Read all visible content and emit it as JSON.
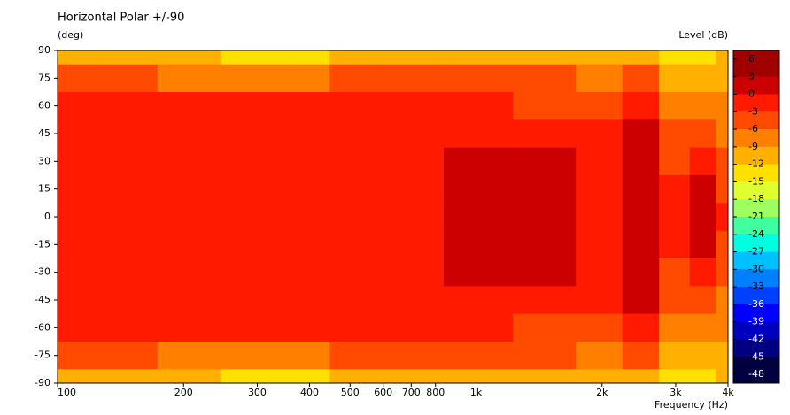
{
  "chart_data": {
    "type": "contour",
    "title": "Horizontal Polar +/-90",
    "y_label": "(deg)",
    "x_label": "Frequency  (Hz)",
    "colorbar_label": "Level  (dB)",
    "x_scale": "log",
    "x": [
      100,
      150,
      200,
      300,
      400,
      500,
      700,
      1000,
      1500,
      2000,
      2500,
      3000,
      3500,
      4000
    ],
    "y": [
      90,
      75,
      60,
      45,
      30,
      15,
      0,
      -15,
      -30,
      -45,
      -60,
      -75,
      -90
    ],
    "z": [
      [
        -11,
        -11,
        -12,
        -13.5,
        -14,
        -12,
        -10,
        -10,
        -11,
        -11,
        -10,
        -14,
        -13,
        -12
      ],
      [
        -6,
        -6,
        -6.5,
        -7,
        -7,
        -6,
        -5,
        -5,
        -6,
        -7,
        -5,
        -12,
        -12,
        -10
      ],
      [
        -2,
        -2,
        -2,
        -2.5,
        -2.5,
        -2,
        -2,
        -3,
        -3.5,
        -4,
        -2,
        -9,
        -8,
        -9
      ],
      [
        -1.5,
        -1.5,
        -1.5,
        -1.5,
        -1.5,
        -1.5,
        -1.5,
        -1,
        -1,
        -2,
        1,
        -6,
        -6,
        -7
      ],
      [
        -1.5,
        -1.5,
        -1.5,
        -1.5,
        -1.5,
        -1.5,
        -1.5,
        1,
        1,
        -1,
        1,
        -4,
        -3,
        -6
      ],
      [
        -1.5,
        -1.5,
        -1.5,
        -1.5,
        -1.5,
        -1.5,
        -1.5,
        1,
        1,
        -1,
        1,
        -2,
        0.5,
        -5
      ],
      [
        -1.5,
        -1.5,
        -1.5,
        -1.5,
        -1.5,
        -1.5,
        -1.5,
        1,
        1,
        -1,
        1,
        -1,
        1,
        -3
      ],
      [
        -1.5,
        -1.5,
        -1.5,
        -1.5,
        -1.5,
        -1.5,
        -1.5,
        1,
        1,
        -1,
        1,
        -2,
        0.5,
        -5
      ],
      [
        -1.5,
        -1.5,
        -1.5,
        -1.5,
        -1.5,
        -1.5,
        -1.5,
        1,
        1,
        -1,
        1,
        -4,
        -3,
        -6
      ],
      [
        -1.5,
        -1.5,
        -1.5,
        -1.5,
        -1.5,
        -1.5,
        -1.5,
        -1,
        -1,
        -2,
        1,
        -6,
        -6,
        -7
      ],
      [
        -2,
        -2,
        -2,
        -2.5,
        -2.5,
        -2,
        -2,
        -3,
        -3.5,
        -4,
        -2,
        -9,
        -8,
        -9
      ],
      [
        -6,
        -6,
        -6.5,
        -7,
        -7,
        -6,
        -5,
        -5,
        -6,
        -7,
        -5,
        -12,
        -12,
        -10
      ],
      [
        -11,
        -11,
        -12,
        -13.5,
        -14,
        -12,
        -10,
        -10,
        -11,
        -11,
        -10,
        -14,
        -13,
        -12
      ]
    ],
    "xlim": [
      100,
      4000
    ],
    "xticks": [
      100,
      200,
      300,
      400,
      500,
      600,
      700,
      800,
      {
        "value": 1000,
        "label": "1k"
      },
      {
        "value": 2000,
        "label": "2k"
      },
      {
        "value": 3000,
        "label": "3k"
      },
      {
        "value": 4000,
        "label": "4k"
      }
    ],
    "ylim": [
      -90,
      90
    ],
    "yticks": [
      90,
      75,
      60,
      45,
      30,
      15,
      0,
      -15,
      -30,
      -45,
      -60,
      -75,
      -90
    ],
    "clim": [
      -49.5,
      7.5
    ],
    "cticks": [
      6,
      3,
      0,
      -3,
      -6,
      -9,
      -12,
      -15,
      -18,
      -21,
      -24,
      -27,
      -30,
      -33,
      -36,
      -39,
      -42,
      -45,
      -48
    ],
    "band_colors": [
      "#a00000",
      "#cc0000",
      "#ff1a00",
      "#ff4a00",
      "#ff8000",
      "#ffb000",
      "#ffe000",
      "#e0ff30",
      "#a0ff60",
      "#40ffa0",
      "#00ffe0",
      "#00c0ff",
      "#0080ff",
      "#0040ff",
      "#0000ff",
      "#0000c0",
      "#000080",
      "#000040"
    ]
  }
}
